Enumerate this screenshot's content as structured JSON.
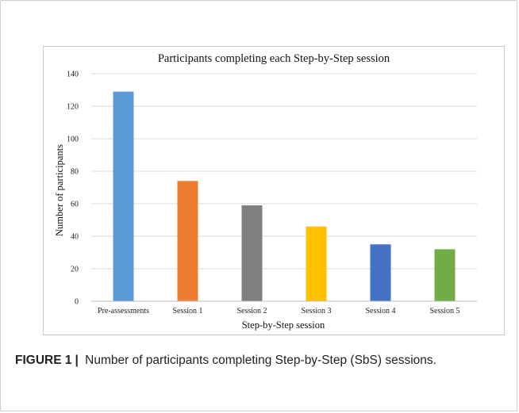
{
  "caption": {
    "label": "FIGURE 1",
    "separator": "|",
    "text": "Number of participants completing Step-by-Step (SbS) sessions."
  },
  "chart_data": {
    "type": "bar",
    "title": "Participants completing each Step-by-Step session",
    "xlabel": "Step-by-Step  session",
    "ylabel": "Number of participants",
    "categories": [
      "Pre-assessments",
      "Session 1",
      "Session 2",
      "Session 3",
      "Session 4",
      "Session 5"
    ],
    "values": [
      129,
      74,
      59,
      46,
      35,
      32
    ],
    "colors": [
      "#5b9bd5",
      "#ed7d31",
      "#7f7f7f",
      "#ffc000",
      "#4472c4",
      "#70ad47"
    ],
    "ylim": [
      0,
      140
    ],
    "yticks": [
      0,
      20,
      40,
      60,
      80,
      100,
      120,
      140
    ],
    "grid": true,
    "legend": "none"
  }
}
